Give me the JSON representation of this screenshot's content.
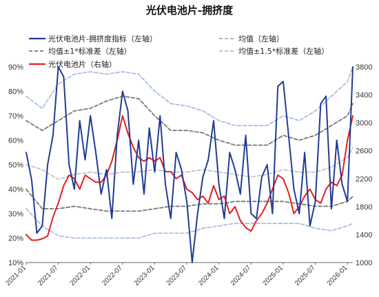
{
  "chart_data": {
    "type": "line",
    "title": "光伏电池片-拥挤度",
    "left_axis": {
      "ticks": [
        "10%",
        "20%",
        "30%",
        "40%",
        "50%",
        "60%",
        "70%",
        "80%",
        "90%"
      ],
      "ylim": [
        10,
        90
      ]
    },
    "right_axis": {
      "ticks": [
        "1000",
        "1400",
        "1800",
        "2200",
        "2600",
        "3000",
        "3400",
        "3800"
      ],
      "ylim": [
        1000,
        3800
      ]
    },
    "x_ticks": [
      "2021-01",
      "2021-07",
      "2022-01",
      "2022-07",
      "2023-01",
      "2023-07",
      "2024-01",
      "2024-07",
      "2025-01",
      "2025-07",
      "2026-01"
    ],
    "x_range": [
      "2021-01",
      "2026-02"
    ],
    "legend": [
      {
        "label": "光伏电池片-拥挤度指标（左轴）",
        "color": "#1f3b94",
        "style": "solid"
      },
      {
        "label": "均值（左轴）",
        "color": "#aaaaaa",
        "style": "dashed"
      },
      {
        "label": "均值±1*标准差（左轴）",
        "color": "#777777",
        "style": "dashed"
      },
      {
        "label": "均值±1.5*标准差（左轴）",
        "color": "#a9bde6",
        "style": "dashed"
      },
      {
        "label": "光伏电池片（右轴）",
        "color": "#e02020",
        "style": "solid"
      }
    ],
    "series": [
      {
        "name": "光伏电池片-拥挤度指标（左轴）",
        "axis": "left",
        "x": [
          "2021-01",
          "2021-02",
          "2021-03",
          "2021-04",
          "2021-05",
          "2021-06",
          "2021-07",
          "2021-08",
          "2021-09",
          "2021-10",
          "2021-11",
          "2021-12",
          "2022-01",
          "2022-02",
          "2022-03",
          "2022-04",
          "2022-05",
          "2022-06",
          "2022-07",
          "2022-08",
          "2022-09",
          "2022-10",
          "2022-11",
          "2022-12",
          "2023-01",
          "2023-02",
          "2023-03",
          "2023-04",
          "2023-05",
          "2023-06",
          "2023-07",
          "2023-08",
          "2023-09",
          "2023-10",
          "2023-11",
          "2023-12",
          "2024-01",
          "2024-02",
          "2024-03",
          "2024-04",
          "2024-05",
          "2024-06",
          "2024-07",
          "2024-08",
          "2024-09",
          "2024-10",
          "2024-11",
          "2024-12",
          "2025-01",
          "2025-02",
          "2025-03",
          "2025-04",
          "2025-05",
          "2025-06",
          "2025-07",
          "2025-08",
          "2025-09",
          "2025-10",
          "2025-11",
          "2025-12",
          "2026-01",
          "2026-02"
        ],
        "values": [
          55,
          44,
          22,
          25,
          50,
          62,
          90,
          86,
          50,
          40,
          68,
          52,
          70,
          55,
          38,
          48,
          28,
          62,
          80,
          72,
          42,
          60,
          38,
          65,
          47,
          70,
          42,
          28,
          55,
          48,
          35,
          10,
          30,
          45,
          52,
          68,
          42,
          28,
          55,
          48,
          38,
          62,
          30,
          28,
          45,
          50,
          30,
          82,
          84,
          62,
          40,
          30,
          55,
          25,
          35,
          75,
          78,
          32,
          60,
          42,
          35,
          90
        ]
      },
      {
        "name": "均值（左轴）",
        "axis": "left",
        "x": [
          "2021-01",
          "2021-04",
          "2021-07",
          "2021-10",
          "2022-01",
          "2022-04",
          "2022-07",
          "2022-10",
          "2023-01",
          "2023-04",
          "2023-07",
          "2023-10",
          "2024-01",
          "2024-04",
          "2024-07",
          "2024-10",
          "2025-01",
          "2025-04",
          "2025-07",
          "2025-10",
          "2026-01",
          "2026-02"
        ],
        "values": [
          50,
          48,
          44,
          46,
          47,
          46,
          47,
          47,
          48,
          47,
          47,
          48,
          47,
          46,
          45,
          46,
          48,
          47,
          47,
          49,
          53,
          57
        ]
      },
      {
        "name": "均值+1*标准差（左轴）",
        "axis": "left",
        "x": [
          "2021-01",
          "2021-04",
          "2021-07",
          "2021-10",
          "2022-01",
          "2022-04",
          "2022-07",
          "2022-10",
          "2023-01",
          "2023-04",
          "2023-07",
          "2023-10",
          "2024-01",
          "2024-04",
          "2024-07",
          "2024-10",
          "2025-01",
          "2025-04",
          "2025-07",
          "2025-10",
          "2026-01",
          "2026-02"
        ],
        "values": [
          68,
          64,
          68,
          72,
          73,
          76,
          78,
          77,
          70,
          64,
          64,
          63,
          60,
          58,
          58,
          58,
          62,
          60,
          62,
          66,
          70,
          75
        ]
      },
      {
        "name": "均值-1*标准差（左轴）",
        "axis": "left",
        "x": [
          "2021-01",
          "2021-04",
          "2021-07",
          "2021-10",
          "2022-01",
          "2022-04",
          "2022-07",
          "2022-10",
          "2023-01",
          "2023-04",
          "2023-07",
          "2023-10",
          "2024-01",
          "2024-04",
          "2024-07",
          "2024-10",
          "2025-01",
          "2025-04",
          "2025-07",
          "2025-10",
          "2026-01",
          "2026-02"
        ],
        "values": [
          40,
          32,
          32,
          33,
          32,
          31,
          31,
          31,
          32,
          33,
          33,
          34,
          34,
          35,
          35,
          35,
          35,
          34,
          33,
          33,
          35,
          37
        ]
      },
      {
        "name": "均值+1.5*标准差（左轴）",
        "axis": "left",
        "x": [
          "2021-01",
          "2021-04",
          "2021-07",
          "2021-10",
          "2022-01",
          "2022-04",
          "2022-07",
          "2022-10",
          "2023-01",
          "2023-04",
          "2023-07",
          "2023-10",
          "2024-01",
          "2024-04",
          "2024-07",
          "2024-10",
          "2025-01",
          "2025-04",
          "2025-07",
          "2025-10",
          "2026-01",
          "2026-02"
        ],
        "values": [
          78,
          73,
          83,
          87,
          88,
          87,
          88,
          87,
          80,
          75,
          74,
          72,
          68,
          66,
          66,
          66,
          70,
          68,
          72,
          78,
          84,
          90
        ]
      },
      {
        "name": "均值-1.5*标准差（左轴）",
        "axis": "left",
        "x": [
          "2021-01",
          "2021-04",
          "2021-07",
          "2021-10",
          "2022-01",
          "2022-04",
          "2022-07",
          "2022-10",
          "2023-01",
          "2023-04",
          "2023-07",
          "2023-10",
          "2024-01",
          "2024-04",
          "2024-07",
          "2024-10",
          "2025-01",
          "2025-04",
          "2025-07",
          "2025-10",
          "2026-01",
          "2026-02"
        ],
        "values": [
          32,
          25,
          21,
          20,
          20,
          20,
          20,
          20,
          22,
          22,
          22,
          24,
          25,
          26,
          26,
          26,
          26,
          26,
          24,
          23,
          25,
          26
        ]
      },
      {
        "name": "光伏电池片（右轴）",
        "axis": "right",
        "x": [
          "2021-01",
          "2021-02",
          "2021-03",
          "2021-04",
          "2021-05",
          "2021-06",
          "2021-07",
          "2021-08",
          "2021-09",
          "2021-10",
          "2021-11",
          "2021-12",
          "2022-01",
          "2022-02",
          "2022-03",
          "2022-04",
          "2022-05",
          "2022-06",
          "2022-07",
          "2022-08",
          "2022-09",
          "2022-10",
          "2022-11",
          "2022-12",
          "2023-01",
          "2023-02",
          "2023-03",
          "2023-04",
          "2023-05",
          "2023-06",
          "2023-07",
          "2023-08",
          "2023-09",
          "2023-10",
          "2023-11",
          "2023-12",
          "2024-01",
          "2024-02",
          "2024-03",
          "2024-04",
          "2024-05",
          "2024-06",
          "2024-07",
          "2024-08",
          "2024-09",
          "2024-10",
          "2024-11",
          "2024-12",
          "2025-01",
          "2025-02",
          "2025-03",
          "2025-04",
          "2025-05",
          "2025-06",
          "2025-07",
          "2025-08",
          "2025-09",
          "2025-10",
          "2025-11",
          "2025-12",
          "2026-01",
          "2026-02"
        ],
        "values": [
          1400,
          1320,
          1320,
          1340,
          1380,
          1650,
          1850,
          2100,
          2250,
          2200,
          2050,
          2250,
          2200,
          2150,
          2150,
          2250,
          2450,
          2750,
          3100,
          2850,
          2650,
          2500,
          2450,
          2500,
          2450,
          2500,
          2300,
          2300,
          2200,
          2250,
          2050,
          2000,
          1900,
          1950,
          1850,
          2100,
          1900,
          1950,
          1700,
          1800,
          1600,
          1500,
          1450,
          1600,
          1700,
          1850,
          2050,
          2250,
          2200,
          2000,
          1700,
          1800,
          1950,
          2050,
          1900,
          1850,
          2050,
          2150,
          2100,
          2250,
          2750,
          3100
        ]
      }
    ]
  }
}
